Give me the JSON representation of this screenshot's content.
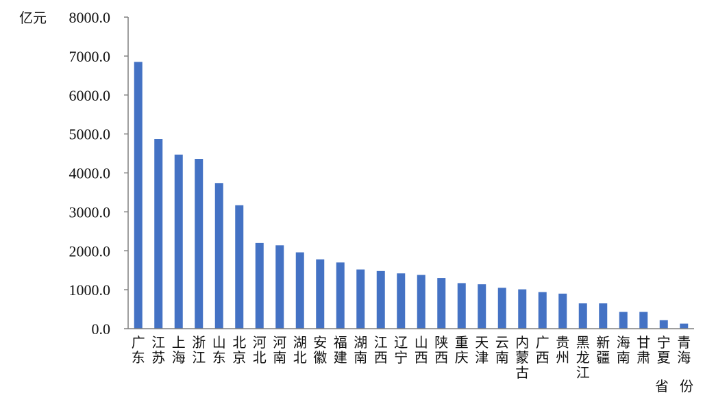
{
  "chart_data": {
    "type": "bar",
    "title": "",
    "ylabel": "亿元",
    "xlabel": "省份",
    "ylim": [
      0,
      8000
    ],
    "yticks": [
      "0.0",
      "1000.0",
      "2000.0",
      "3000.0",
      "4000.0",
      "5000.0",
      "6000.0",
      "7000.0",
      "8000.0"
    ],
    "categories": [
      "广东",
      "江苏",
      "上海",
      "浙江",
      "山东",
      "北京",
      "河北",
      "河南",
      "湖北",
      "安徽",
      "福建",
      "湖南",
      "江西",
      "辽宁",
      "山西",
      "陕西",
      "重庆",
      "天津",
      "云南",
      "内蒙古",
      "广西",
      "贵州",
      "黑龙江",
      "新疆",
      "海南",
      "甘肃",
      "宁夏",
      "青海"
    ],
    "values": [
      6850,
      4870,
      4470,
      4360,
      3740,
      3170,
      2200,
      2140,
      1960,
      1780,
      1700,
      1520,
      1480,
      1420,
      1380,
      1300,
      1170,
      1140,
      1050,
      1010,
      940,
      900,
      650,
      650,
      430,
      430,
      220,
      130
    ],
    "grid": false,
    "legend": "none",
    "bar_color": "#4472C4"
  }
}
